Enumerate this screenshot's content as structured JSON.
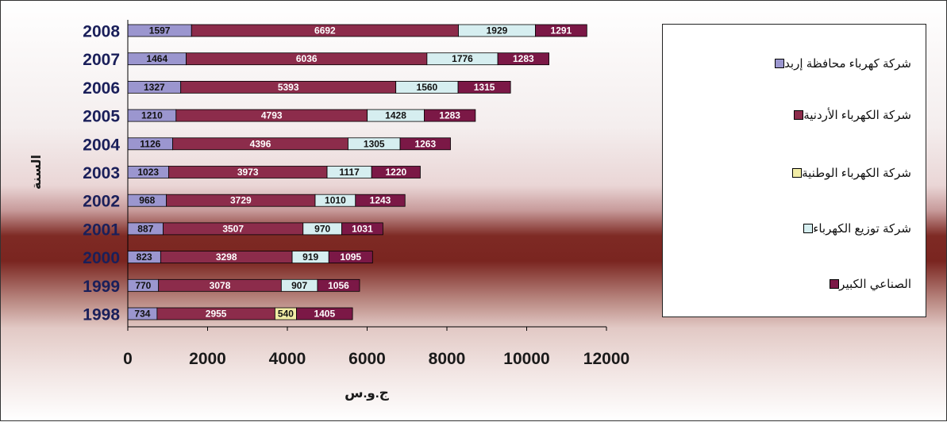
{
  "chart_data": {
    "type": "bar",
    "orientation": "horizontal",
    "stacked": true,
    "categories": [
      "1998",
      "1999",
      "2000",
      "2001",
      "2002",
      "2003",
      "2004",
      "2005",
      "2006",
      "2007",
      "2008"
    ],
    "series": [
      {
        "name": "شركة كهرباء محافظة إربد",
        "color": "#9b96cf",
        "values": [
          734,
          770,
          823,
          887,
          968,
          1023,
          1126,
          1210,
          1327,
          1464,
          1597
        ]
      },
      {
        "name": "شركة الكهرباء الأردنية",
        "color": "#8c2c4b",
        "values": [
          2955,
          3078,
          3298,
          3507,
          3729,
          3973,
          4396,
          4793,
          5393,
          6036,
          6692
        ]
      },
      {
        "name": "شركة الكهرباء الوطنية",
        "color": "#f2eda6",
        "values": [
          540,
          0,
          0,
          0,
          0,
          0,
          0,
          0,
          0,
          0,
          0
        ]
      },
      {
        "name": "شركة توزيع الكهرباء",
        "color": "#d6eef0",
        "values": [
          0,
          907,
          919,
          970,
          1010,
          1117,
          1305,
          1428,
          1560,
          1776,
          1929
        ]
      },
      {
        "name": "الصناعي الكبير",
        "color": "#7b1846",
        "values": [
          1405,
          1056,
          1095,
          1031,
          1243,
          1220,
          1263,
          1283,
          1315,
          1283,
          1291
        ]
      }
    ],
    "xlabel": "ج.و.س",
    "ylabel": "السنة",
    "xlim": [
      0,
      12000
    ],
    "xticks": [
      0,
      2000,
      4000,
      6000,
      8000,
      10000,
      12000
    ],
    "grid": false,
    "legend_position": "right"
  }
}
